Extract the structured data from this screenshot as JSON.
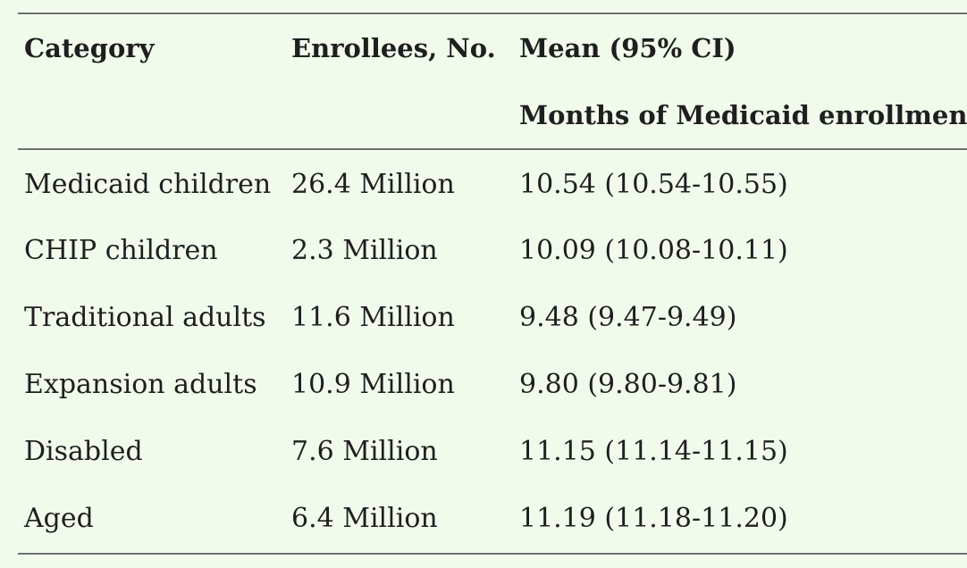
{
  "table": {
    "headers": {
      "category": "Category",
      "enrollees": "Enrollees, No.",
      "mean": "Mean (95% CI)",
      "mean_sub": "Months of Medicaid enrollment"
    },
    "rows": [
      {
        "category": "Medicaid children",
        "enrollees": "26.4 Million",
        "mean": "10.54 (10.54-10.55)"
      },
      {
        "category": "CHIP children",
        "enrollees": "2.3 Million",
        "mean": "10.09 (10.08-10.11)"
      },
      {
        "category": "Traditional adults",
        "enrollees": "11.6 Million",
        "mean": "9.48 (9.47-9.49)"
      },
      {
        "category": "Expansion adults",
        "enrollees": "10.9 Million",
        "mean": "9.80 (9.80-9.81)"
      },
      {
        "category": "Disabled",
        "enrollees": "7.6 Million",
        "mean": "11.15 (11.14-11.15)"
      },
      {
        "category": "Aged",
        "enrollees": "6.4 Million",
        "mean": "11.19 (11.18-11.20)"
      }
    ]
  }
}
